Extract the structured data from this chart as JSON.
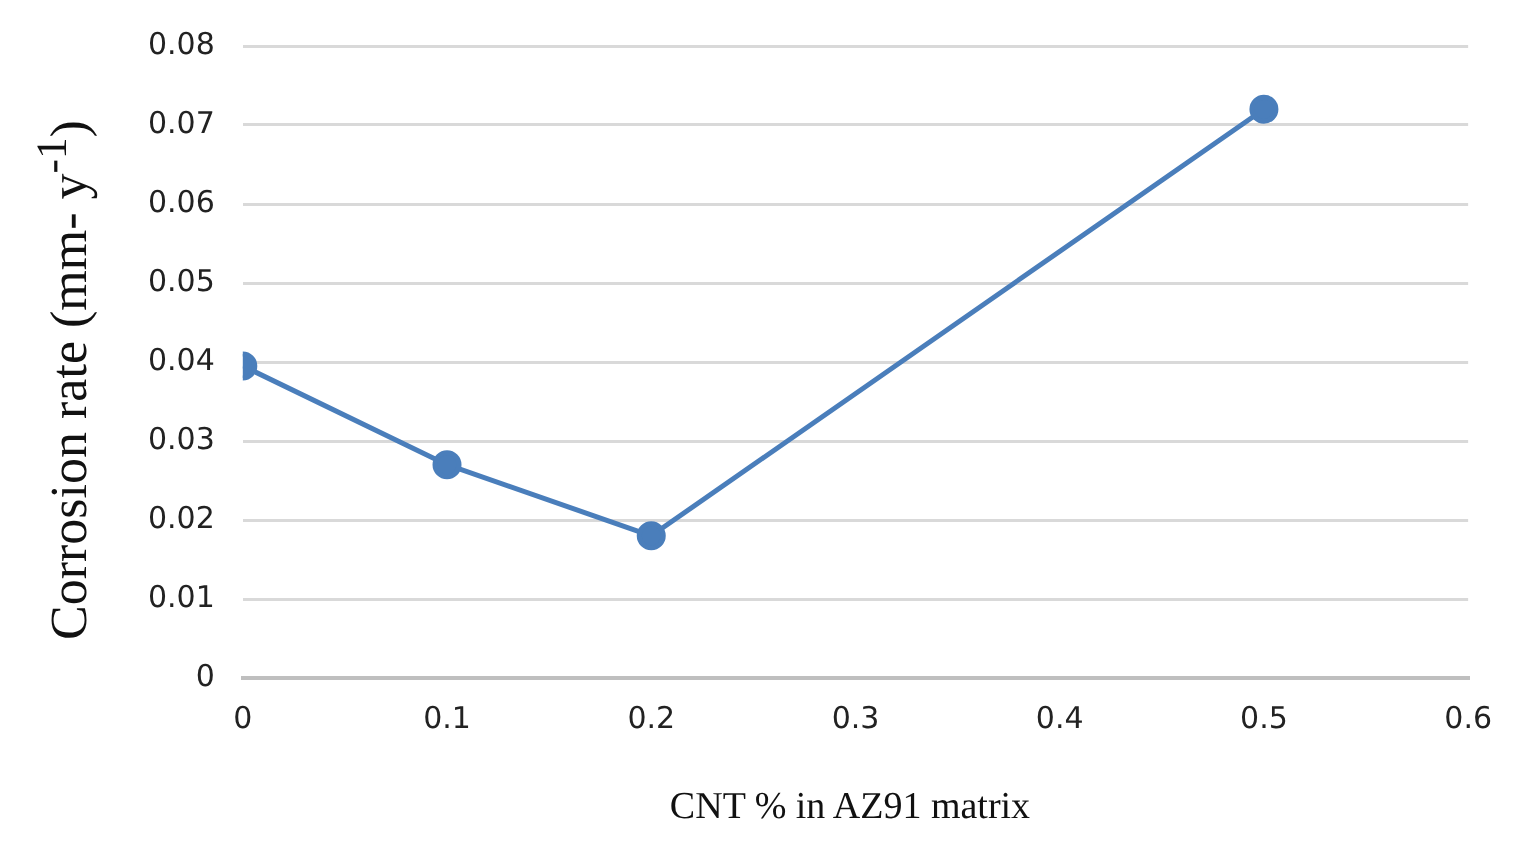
{
  "chart_data": {
    "type": "line",
    "xlabel": "CNT % in AZ91 matrix",
    "ylabel": "Corrosion rate (mm- y$^{-1}$)",
    "x": [
      0,
      0.1,
      0.2,
      0.5
    ],
    "series": [
      {
        "color": "#4a7ebb",
        "values": [
          0.0395,
          0.027,
          0.018,
          0.072
        ]
      }
    ],
    "xlim": [
      0,
      0.6
    ],
    "xticks": [
      0,
      0.1,
      0.2,
      0.3,
      0.4,
      0.5,
      0.6
    ],
    "ylim": [
      0,
      0.08
    ],
    "yticks": [
      0,
      0.01,
      0.02,
      0.03,
      0.04,
      0.05,
      0.06,
      0.07,
      0.08
    ],
    "grid": "y",
    "marker": "circle",
    "line_style": "solid",
    "legend": false
  }
}
